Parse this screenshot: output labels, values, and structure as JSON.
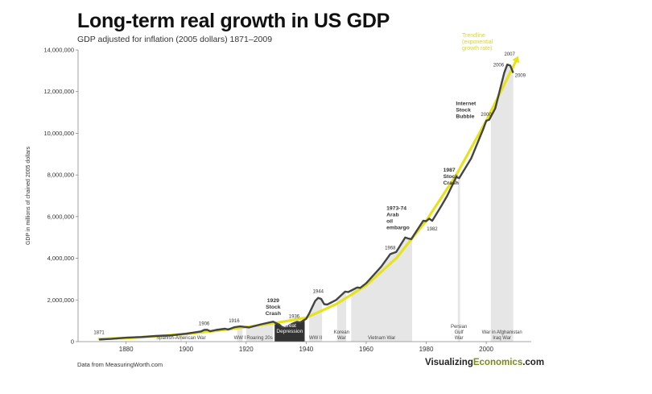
{
  "header": {
    "title": "Long-term real growth in US GDP",
    "subtitle": "GDP adjusted for inflation (2005 dollars) 1871–2009"
  },
  "footer": {
    "source": "Data from MeasuringWorth.com",
    "brand_part1": "Visualizing",
    "brand_part2": "Economics",
    "brand_part3": ".com",
    "brand_accent_color": "#7b8a1d"
  },
  "chart_data": {
    "type": "line",
    "title": "Long-term real growth in US GDP",
    "subtitle": "GDP adjusted for inflation (2005 dollars) 1871–2009",
    "xlabel": "",
    "ylabel": "GDP in millions of chained 2005 dollars",
    "xlim": [
      1864,
      2015
    ],
    "ylim": [
      0,
      14000000
    ],
    "x_ticks": [
      1880,
      1900,
      1920,
      1940,
      1960,
      1980,
      2000
    ],
    "y_ticks": [
      {
        "value": 0,
        "label": "0"
      },
      {
        "value": 2000000,
        "label": "2,000,000"
      },
      {
        "value": 4000000,
        "label": "4,000,000"
      },
      {
        "value": 6000000,
        "label": "6,000,000"
      },
      {
        "value": 8000000,
        "label": "8,000,000"
      },
      {
        "value": 10000000,
        "label": "10,000,000"
      },
      {
        "value": 12000000,
        "label": "12,000,000"
      },
      {
        "value": 14000000,
        "label": "14,000,000"
      }
    ],
    "grid": false,
    "colors": {
      "gdp_line": "#444444",
      "trendline": "#e6e31c",
      "shade": "#e6e6e6",
      "depression": "#333333",
      "trend_label": "#d8d62a"
    },
    "series": [
      {
        "kind": "actual",
        "x": [
          1871,
          1875,
          1880,
          1885,
          1890,
          1895,
          1900,
          1905,
          1906,
          1907,
          1908,
          1910,
          1913,
          1914,
          1916,
          1918,
          1920,
          1921,
          1925,
          1929,
          1930,
          1931,
          1932,
          1933,
          1936,
          1937,
          1938,
          1940,
          1941,
          1942,
          1943,
          1944,
          1945,
          1946,
          1947,
          1950,
          1953,
          1954,
          1957,
          1958,
          1960,
          1965,
          1968,
          1970,
          1973,
          1974,
          1975,
          1979,
          1980,
          1981,
          1982,
          1985,
          1987,
          1990,
          1991,
          1995,
          1999,
          2000,
          2001,
          2003,
          2006,
          2007,
          2008,
          2009
        ],
        "values": [
          100000,
          130000,
          190000,
          220000,
          270000,
          300000,
          380000,
          490000,
          560000,
          570000,
          500000,
          560000,
          620000,
          580000,
          690000,
          730000,
          700000,
          680000,
          830000,
          960000,
          880000,
          820000,
          700000,
          690000,
          900000,
          950000,
          920000,
          1100000,
          1350000,
          1650000,
          1950000,
          2100000,
          2050000,
          1800000,
          1780000,
          2000000,
          2400000,
          2380000,
          2600000,
          2580000,
          2800000,
          3600000,
          4200000,
          4300000,
          5000000,
          4950000,
          4920000,
          5800000,
          5780000,
          5900000,
          5800000,
          6500000,
          7000000,
          7900000,
          7850000,
          8800000,
          10200000,
          10600000,
          10650000,
          11200000,
          12900000,
          13300000,
          13250000,
          12900000
        ]
      },
      {
        "kind": "trend",
        "x": [
          1871,
          1880,
          1890,
          1900,
          1910,
          1920,
          1930,
          1940,
          1950,
          1960,
          1970,
          1980,
          1990,
          2000,
          2010
        ],
        "values": [
          130000,
          170000,
          260000,
          370000,
          520000,
          700000,
          900000,
          1150000,
          1800000,
          2700000,
          4000000,
          5800000,
          8000000,
          10600000,
          13500000
        ]
      }
    ],
    "trend_label": [
      "Trendline",
      "(exponential",
      "growth rate)"
    ],
    "shaded_periods": [
      {
        "label": [
          "Spanish-American War"
        ],
        "start": 1898,
        "end": 1898.6
      },
      {
        "label": [
          "WW I"
        ],
        "start": 1917,
        "end": 1918.8
      },
      {
        "label": [
          "Roaring 20s"
        ],
        "start": 1920,
        "end": 1929
      },
      {
        "label": [
          "Great",
          "Depression"
        ],
        "start": 1929.5,
        "end": 1939.5,
        "dark": true
      },
      {
        "label": [
          "WW II"
        ],
        "start": 1941,
        "end": 1945.3
      },
      {
        "label": [
          "Korean",
          "War"
        ],
        "start": 1950.3,
        "end": 1953.3
      },
      {
        "label": [
          "Vietnam War"
        ],
        "start": 1955,
        "end": 1975.3
      },
      {
        "label": [
          "Persian",
          "Gulf",
          "War"
        ],
        "start": 1990.5,
        "end": 1991.3
      },
      {
        "label": [
          "War in Afghanistan",
          "Iraq War"
        ],
        "start": 2001.5,
        "end": 2009
      }
    ],
    "annotations": [
      {
        "text": [
          "1871"
        ],
        "x": 1871,
        "y": 100000
      },
      {
        "text": [
          "1906"
        ],
        "x": 1906,
        "y": 560000
      },
      {
        "text": [
          "1916"
        ],
        "x": 1916,
        "y": 690000
      },
      {
        "text": [
          "1929",
          "Stock",
          "Crash"
        ],
        "x": 1929,
        "y": 960000,
        "bold": true
      },
      {
        "text": [
          "1936"
        ],
        "x": 1936,
        "y": 900000
      },
      {
        "text": [
          "1944"
        ],
        "x": 1944,
        "y": 2100000
      },
      {
        "text": [
          "1968"
        ],
        "x": 1968,
        "y": 4200000
      },
      {
        "text": [
          "1973-74",
          "Arab",
          "oil",
          "embargo"
        ],
        "x": 1974,
        "y": 5000000,
        "bold": true
      },
      {
        "text": [
          "1982"
        ],
        "x": 1982,
        "y": 5800000
      },
      {
        "text": [
          "1987",
          "Stock",
          "Crash"
        ],
        "x": 1987,
        "y": 7000000,
        "bold": true
      },
      {
        "text": [
          "Internet",
          "Stock",
          "Bubble"
        ],
        "x": 1999,
        "y": 10200000,
        "bold": true
      },
      {
        "text": [
          "2000"
        ],
        "x": 2000,
        "y": 10600000
      },
      {
        "text": [
          "2006"
        ],
        "x": 2006,
        "y": 12900000
      },
      {
        "text": [
          "2007"
        ],
        "x": 2007,
        "y": 13300000
      },
      {
        "text": [
          "2009"
        ],
        "x": 2009,
        "y": 12900000
      }
    ]
  }
}
